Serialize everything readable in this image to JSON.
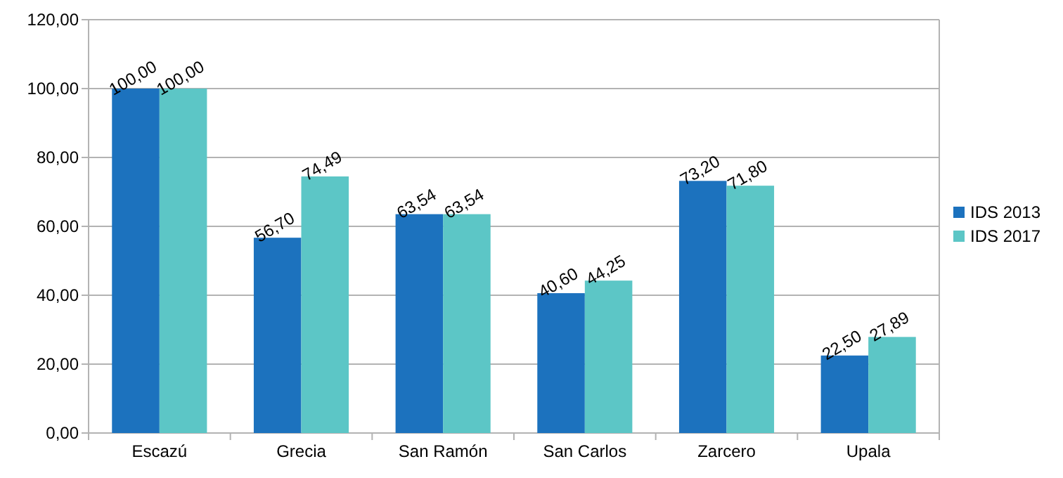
{
  "chart_data": {
    "type": "bar",
    "categories": [
      "Escazú",
      "Grecia",
      "San Ramón",
      "San Carlos",
      "Zarcero",
      "Upala"
    ],
    "series": [
      {
        "name": "IDS 2013",
        "color": "#1c72be",
        "values": [
          100,
          56.7,
          63.54,
          40.6,
          73.2,
          22.5
        ],
        "value_labels": [
          "100,00",
          "56,70",
          "63,54",
          "40,60",
          "73,20",
          "22,50"
        ]
      },
      {
        "name": "IDS 2017",
        "color": "#5cc6c6",
        "values": [
          100,
          74.49,
          63.54,
          44.25,
          71.8,
          27.89
        ],
        "value_labels": [
          "100,00",
          "74,49",
          "63,54",
          "44,25",
          "71,80",
          "27,89"
        ]
      }
    ],
    "ylim": [
      0,
      120
    ],
    "yticks": [
      {
        "value": 0,
        "label": "0,00"
      },
      {
        "value": 20,
        "label": "20,00"
      },
      {
        "value": 40,
        "label": "40,00"
      },
      {
        "value": 60,
        "label": "60,00"
      },
      {
        "value": 80,
        "label": "80,00"
      },
      {
        "value": 100,
        "label": "100,00"
      },
      {
        "value": 120,
        "label": "120,00"
      }
    ],
    "grid": "y",
    "legend": "right"
  }
}
